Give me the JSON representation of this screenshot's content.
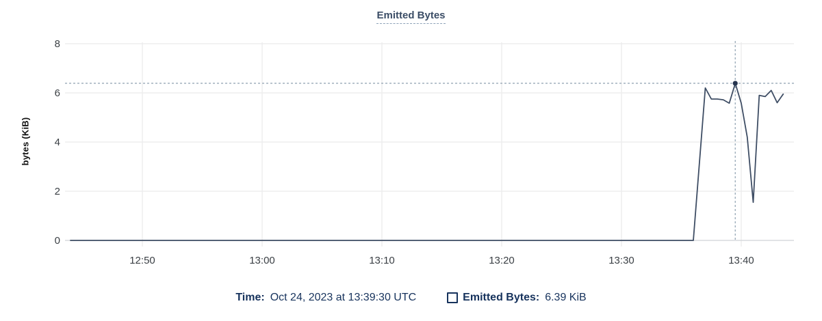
{
  "title": "Emitted Bytes",
  "y_axis": {
    "label": "bytes (KiB)",
    "ticks": [
      8,
      6,
      4,
      2,
      0
    ]
  },
  "x_axis": {
    "ticks": [
      "12:50",
      "13:00",
      "13:10",
      "13:20",
      "13:30",
      "13:40"
    ]
  },
  "footer": {
    "time_label": "Time:",
    "time_value": "Oct 24, 2023 at 13:39:30 UTC",
    "series_label": "Emitted Bytes:",
    "series_value": "6.39 KiB"
  },
  "colors": {
    "line": "#3e4d64",
    "marker": "#26354f",
    "crosshair": "#97a7b6",
    "grid": "#ededee",
    "axis": "#d7dadd",
    "title": "#3b4d66",
    "footer_text": "#16325c",
    "tick_text": "#3a3f44"
  },
  "chart_data": {
    "type": "line",
    "title": "Emitted Bytes",
    "xlabel": "",
    "ylabel": "bytes (KiB)",
    "ylim": [
      0,
      8
    ],
    "x_range": [
      "12:43:30",
      "13:44:30"
    ],
    "x_tick_times": [
      "12:50:00",
      "13:00:00",
      "13:10:00",
      "13:20:00",
      "13:30:00",
      "13:40:00"
    ],
    "grid": true,
    "legend_position": "bottom",
    "series": [
      {
        "name": "Emitted Bytes",
        "unit": "KiB",
        "points": [
          [
            "12:44:00",
            0
          ],
          [
            "13:36:00",
            0
          ],
          [
            "13:37:00",
            6.2
          ],
          [
            "13:37:30",
            5.75
          ],
          [
            "13:38:00",
            5.75
          ],
          [
            "13:38:30",
            5.72
          ],
          [
            "13:39:00",
            5.58
          ],
          [
            "13:39:30",
            6.39
          ],
          [
            "13:40:00",
            5.58
          ],
          [
            "13:40:30",
            4.2
          ],
          [
            "13:41:00",
            1.55
          ],
          [
            "13:41:30",
            5.9
          ],
          [
            "13:42:00",
            5.85
          ],
          [
            "13:42:30",
            6.1
          ],
          [
            "13:43:00",
            5.6
          ],
          [
            "13:43:30",
            5.95
          ]
        ]
      }
    ],
    "highlight": {
      "time": "13:39:30",
      "value": 6.39,
      "crosshair": true,
      "tooltip_time": "Oct 24, 2023 at 13:39:30 UTC",
      "tooltip_value": "6.39 KiB"
    }
  }
}
